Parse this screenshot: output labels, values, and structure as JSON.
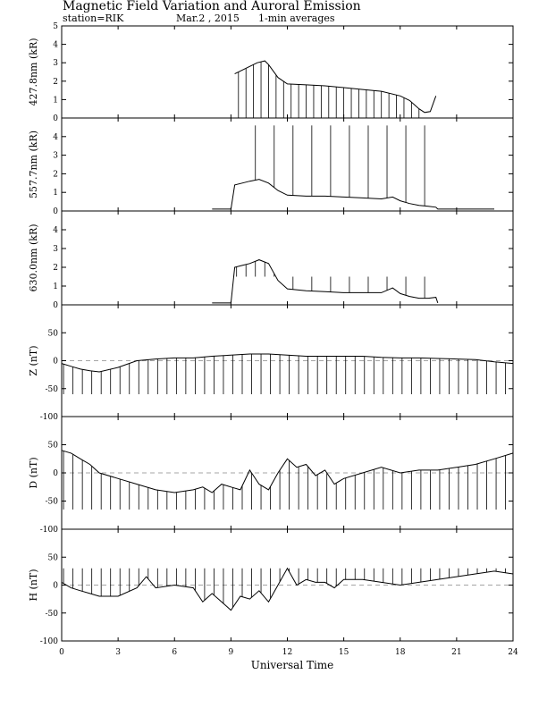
{
  "header": {
    "title": "Magnetic Field Variation and Auroral Emission",
    "station": "station=RIK",
    "date": "Mar.2  , 2015",
    "averaging": "1-min averages"
  },
  "chart_data": {
    "type": "line",
    "xlabel": "Universal Time",
    "xlim": [
      0,
      24
    ],
    "xticks": [
      0,
      3,
      6,
      9,
      12,
      15,
      18,
      21,
      24
    ],
    "panels": [
      {
        "id": "427",
        "ylabel": "427.8nm (kR)",
        "ylim": [
          0,
          5
        ],
        "yticks": [
          0,
          1,
          2,
          3,
          4,
          5
        ],
        "series": {
          "x": [
            9.2,
            9.6,
            10.0,
            10.4,
            10.8,
            11.0,
            11.5,
            12.0,
            13.0,
            14.0,
            15.0,
            16.0,
            17.0,
            18.0,
            18.5,
            19.0,
            19.3,
            19.6,
            19.9
          ],
          "y": [
            2.4,
            2.6,
            2.8,
            3.0,
            3.1,
            2.9,
            2.2,
            1.85,
            1.8,
            1.75,
            1.65,
            1.55,
            1.45,
            1.2,
            0.95,
            0.5,
            0.3,
            0.35,
            1.2
          ]
        },
        "spikes": {
          "x": [
            9.4,
            9.8,
            10.2,
            10.6,
            11.0,
            11.4,
            11.8,
            12.2,
            12.6,
            13.0,
            13.4,
            13.8,
            14.2,
            14.6,
            15.0,
            15.4,
            15.8,
            16.2,
            16.6,
            17.0,
            17.4,
            17.8,
            18.2,
            18.6,
            19.0
          ],
          "to": 0
        }
      },
      {
        "id": "557",
        "ylabel": "557.7nm (kR)",
        "ylim": [
          0,
          5
        ],
        "yticks": [
          0,
          1,
          2,
          3,
          4
        ],
        "series": {
          "x": [
            8.0,
            9.0,
            9.2,
            9.6,
            10.0,
            10.5,
            11.0,
            11.5,
            12.0,
            13.0,
            14.0,
            15.0,
            16.0,
            17.0,
            17.6,
            18.0,
            18.5,
            19.0,
            19.5,
            19.9,
            20.0,
            21.0,
            22.0,
            23.0
          ],
          "y": [
            0.1,
            0.1,
            1.4,
            1.5,
            1.6,
            1.7,
            1.5,
            1.1,
            0.85,
            0.8,
            0.8,
            0.75,
            0.7,
            0.65,
            0.75,
            0.55,
            0.4,
            0.3,
            0.25,
            0.2,
            0.1,
            0.1,
            0.1,
            0.1
          ]
        },
        "spikes": {
          "x": [
            10.3,
            11.3,
            12.3,
            13.3,
            14.3,
            15.3,
            16.3,
            17.3,
            18.3,
            19.3
          ],
          "to": 4.6
        }
      },
      {
        "id": "630",
        "ylabel": "630.0nm (kR)",
        "ylim": [
          0,
          5
        ],
        "yticks": [
          0,
          1,
          2,
          3,
          4
        ],
        "series": {
          "x": [
            8.0,
            9.0,
            9.2,
            9.6,
            10.0,
            10.5,
            11.0,
            11.5,
            12.0,
            13.0,
            14.0,
            15.0,
            16.0,
            17.0,
            17.6,
            18.0,
            18.5,
            19.0,
            19.5,
            19.9,
            20.0
          ],
          "y": [
            0.1,
            0.1,
            2.0,
            2.1,
            2.2,
            2.4,
            2.2,
            1.3,
            0.85,
            0.75,
            0.7,
            0.65,
            0.65,
            0.65,
            0.9,
            0.6,
            0.45,
            0.35,
            0.35,
            0.4,
            0.1
          ]
        },
        "spikes": {
          "x": [
            9.3,
            9.8,
            10.3,
            10.8,
            11.3,
            12.3,
            13.3,
            14.3,
            15.3,
            16.3,
            17.3,
            18.3,
            19.3
          ],
          "to": 1.5
        }
      },
      {
        "id": "Z",
        "ylabel": "Z (nT)",
        "ylim": [
          -100,
          100
        ],
        "yticks": [
          -100,
          -50,
          0,
          50
        ],
        "baseline": 0,
        "series": {
          "x": [
            0,
            0.5,
            1,
            1.5,
            2,
            3,
            4,
            5,
            6,
            7,
            8,
            9,
            10,
            11,
            12,
            13,
            14,
            15,
            16,
            17,
            18,
            19,
            20,
            21,
            22,
            23,
            24
          ],
          "y": [
            -5,
            -10,
            -15,
            -18,
            -20,
            -12,
            0,
            3,
            5,
            5,
            8,
            10,
            12,
            12,
            10,
            8,
            8,
            8,
            8,
            6,
            5,
            5,
            4,
            3,
            2,
            -2,
            -5
          ]
        },
        "spikes": {
          "x": [
            0.1,
            0.6,
            1.1,
            1.6,
            2.1,
            2.6,
            3.1,
            3.6,
            4.1,
            4.6,
            5.1,
            5.6,
            6.1,
            6.6,
            7.1,
            7.6,
            8.1,
            8.6,
            9.1,
            9.6,
            10.1,
            10.6,
            11.1,
            11.6,
            12.1,
            12.6,
            13.1,
            13.6,
            14.1,
            14.6,
            15.1,
            15.6,
            16.1,
            16.6,
            17.1,
            17.6,
            18.1,
            18.6,
            19.1,
            19.6,
            20.1,
            20.6,
            21.1,
            21.6,
            22.1,
            22.6,
            23.1,
            23.6
          ],
          "to": -60
        }
      },
      {
        "id": "D",
        "ylabel": "D (nT)",
        "ylim": [
          -100,
          100
        ],
        "yticks": [
          -100,
          -50,
          0,
          50
        ],
        "baseline": 0,
        "series": {
          "x": [
            0,
            0.5,
            1,
            1.5,
            2,
            3,
            4,
            5,
            6,
            7,
            7.5,
            8,
            8.5,
            9,
            9.5,
            10,
            10.5,
            11,
            11.5,
            12,
            12.5,
            13,
            13.5,
            14,
            14.5,
            15,
            16,
            17,
            18,
            19,
            20,
            21,
            22,
            23,
            24
          ],
          "y": [
            40,
            35,
            25,
            15,
            0,
            -10,
            -20,
            -30,
            -35,
            -30,
            -25,
            -35,
            -20,
            -25,
            -30,
            5,
            -20,
            -30,
            0,
            25,
            10,
            15,
            -5,
            5,
            -20,
            -10,
            0,
            10,
            0,
            5,
            5,
            10,
            15,
            25,
            35
          ]
        },
        "spikes": {
          "x": [
            0.1,
            0.6,
            1.1,
            1.6,
            2.1,
            2.6,
            3.1,
            3.6,
            4.1,
            4.6,
            5.1,
            5.6,
            6.1,
            6.6,
            7.1,
            7.6,
            8.1,
            8.6,
            9.1,
            9.6,
            10.1,
            10.6,
            11.1,
            11.6,
            12.1,
            12.6,
            13.1,
            13.6,
            14.1,
            14.6,
            15.1,
            15.6,
            16.1,
            16.6,
            17.1,
            17.6,
            18.1,
            18.6,
            19.1,
            19.6,
            20.1,
            20.6,
            21.1,
            21.6,
            22.1,
            22.6,
            23.1,
            23.6
          ],
          "to": -65
        }
      },
      {
        "id": "H",
        "ylabel": "H (nT)",
        "ylim": [
          -100,
          100
        ],
        "yticks": [
          -100,
          -50,
          0,
          50
        ],
        "baseline": 0,
        "series": {
          "x": [
            0,
            0.5,
            1,
            1.5,
            2,
            3,
            4,
            4.5,
            5,
            6,
            7,
            7.5,
            8,
            8.5,
            9,
            9.5,
            10,
            10.5,
            11,
            11.5,
            12,
            12.5,
            13,
            13.5,
            14,
            14.5,
            15,
            16,
            17,
            18,
            19,
            20,
            21,
            22,
            23,
            24
          ],
          "y": [
            5,
            -5,
            -10,
            -15,
            -20,
            -20,
            -5,
            15,
            -5,
            0,
            -5,
            -30,
            -15,
            -30,
            -45,
            -20,
            -25,
            -10,
            -30,
            0,
            30,
            0,
            10,
            5,
            5,
            -5,
            10,
            10,
            5,
            0,
            5,
            10,
            15,
            20,
            25,
            20
          ]
        },
        "spikes": {
          "x": [
            0.1,
            0.6,
            1.1,
            1.6,
            2.1,
            2.6,
            3.1,
            3.6,
            4.1,
            4.6,
            5.1,
            5.6,
            6.1,
            6.6,
            7.1,
            7.6,
            8.1,
            8.6,
            9.1,
            9.6,
            10.1,
            10.6,
            11.1,
            11.6,
            12.1,
            12.6,
            13.1,
            13.6,
            14.1,
            14.6,
            15.1,
            15.6,
            16.1,
            16.6,
            17.1,
            17.6,
            18.1,
            18.6,
            19.1,
            19.6,
            20.1,
            20.6,
            21.1,
            21.6,
            22.1,
            22.6,
            23.1,
            23.6
          ],
          "to": 30
        }
      }
    ]
  }
}
